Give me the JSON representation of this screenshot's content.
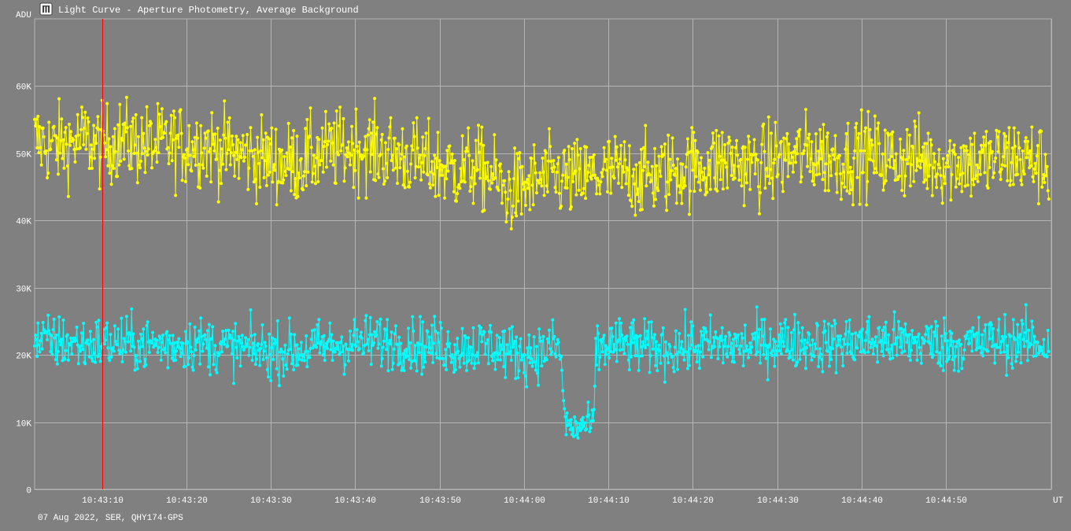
{
  "window": {
    "title": "Light Curve - Aperture Photometry, Average Background",
    "icon": "light-curve-app-icon"
  },
  "footer": "07 Aug 2022, SER, QHY174-GPS",
  "colors": {
    "background": "#808080",
    "grid": "#b4b4b4",
    "text": "#ffffff",
    "series_yellow": "#ffff00",
    "series_cyan": "#00ffff",
    "cursor": "#ff0000"
  },
  "chart_data": {
    "type": "line",
    "title": "Light Curve - Aperture Photometry, Average Background",
    "ylabel": "ADU",
    "xlabel": "UT",
    "ylim": [
      0,
      70000
    ],
    "xlim": [
      0,
      120.5
    ],
    "y_ticks": [
      {
        "value": 0,
        "label": "0"
      },
      {
        "value": 10000,
        "label": "10K"
      },
      {
        "value": 20000,
        "label": "20K"
      },
      {
        "value": 30000,
        "label": "30K"
      },
      {
        "value": 40000,
        "label": "40K"
      },
      {
        "value": 50000,
        "label": "50K"
      },
      {
        "value": 60000,
        "label": "60K"
      }
    ],
    "x_ticks": [
      {
        "value": 8,
        "label": "10:43:10"
      },
      {
        "value": 18,
        "label": "10:43:20"
      },
      {
        "value": 28,
        "label": "10:43:30"
      },
      {
        "value": 38,
        "label": "10:43:40"
      },
      {
        "value": 48,
        "label": "10:43:50"
      },
      {
        "value": 58,
        "label": "10:44:00"
      },
      {
        "value": 68,
        "label": "10:44:10"
      },
      {
        "value": 78,
        "label": "10:44:20"
      },
      {
        "value": 88,
        "label": "10:44:30"
      },
      {
        "value": 98,
        "label": "10:44:40"
      },
      {
        "value": 108,
        "label": "10:44:50"
      },
      {
        "value": 120.5,
        "label": ""
      }
    ],
    "grid": true,
    "cursor_x": 8,
    "series": [
      {
        "color": "#ffff00",
        "description": "yellow comparison star, about 50K ADU with large scatter",
        "x": [
          0,
          2,
          4,
          6,
          8,
          10,
          12,
          14,
          16,
          18,
          20,
          22,
          24,
          26,
          28,
          30,
          32,
          34,
          36,
          38,
          40,
          42,
          44,
          46,
          48,
          50,
          52,
          54,
          56,
          58,
          60,
          62,
          64,
          66,
          68,
          70,
          72,
          74,
          76,
          78,
          80,
          82,
          84,
          86,
          88,
          90,
          92,
          94,
          96,
          98,
          100,
          102,
          104,
          106,
          108,
          110,
          112,
          114,
          116,
          118,
          120
        ],
        "y": [
          52000,
          51000,
          51500,
          52000,
          51000,
          52000,
          51500,
          51000,
          51500,
          51000,
          51500,
          50500,
          50000,
          49500,
          49000,
          48500,
          49000,
          50000,
          50500,
          51000,
          50500,
          50000,
          49500,
          48500,
          48000,
          47500,
          48000,
          47000,
          44000,
          45000,
          46000,
          46500,
          46000,
          46500,
          47000,
          47000,
          46500,
          47000,
          47500,
          48000,
          48500,
          49000,
          48500,
          48000,
          49000,
          49500,
          50000,
          49500,
          49000,
          50000,
          49500,
          49000,
          49500,
          49000,
          48500,
          49000,
          48500,
          49000,
          49500,
          49000,
          48000
        ],
        "point_scatter_std": 3000,
        "sample_spacing_s": 0.1
      },
      {
        "color": "#00ffff",
        "description": "cyan target star, about 22K ADU with occultation dip near 10:44:04-10:44:08",
        "x": [
          0,
          2,
          4,
          6,
          8,
          10,
          12,
          14,
          16,
          18,
          20,
          22,
          24,
          26,
          28,
          30,
          32,
          34,
          36,
          38,
          40,
          42,
          44,
          46,
          48,
          50,
          52,
          54,
          56,
          58,
          60,
          62,
          62.2,
          63,
          64,
          65,
          66,
          66.3,
          66.5,
          68,
          70,
          72,
          74,
          76,
          78,
          80,
          82,
          84,
          86,
          88,
          90,
          92,
          94,
          96,
          98,
          100,
          102,
          104,
          106,
          108,
          110,
          112,
          114,
          116,
          118,
          120
        ],
        "y": [
          22000,
          22000,
          21800,
          21500,
          21800,
          21700,
          21600,
          21500,
          21500,
          21800,
          21600,
          21200,
          21000,
          20800,
          20500,
          20600,
          20800,
          21200,
          21500,
          21700,
          22000,
          22000,
          21800,
          21500,
          21500,
          21000,
          21200,
          21500,
          20500,
          20000,
          20500,
          21500,
          20500,
          9500,
          9000,
          9500,
          9500,
          10000,
          20500,
          21500,
          21500,
          21000,
          21000,
          21000,
          21200,
          21500,
          21500,
          21300,
          21500,
          22000,
          22000,
          21800,
          21500,
          21800,
          22000,
          22000,
          22000,
          21800,
          22000,
          21500,
          21500,
          21800,
          22000,
          22000,
          22000,
          21500
        ],
        "point_scatter_std": 2000,
        "sample_spacing_s": 0.1
      }
    ]
  }
}
